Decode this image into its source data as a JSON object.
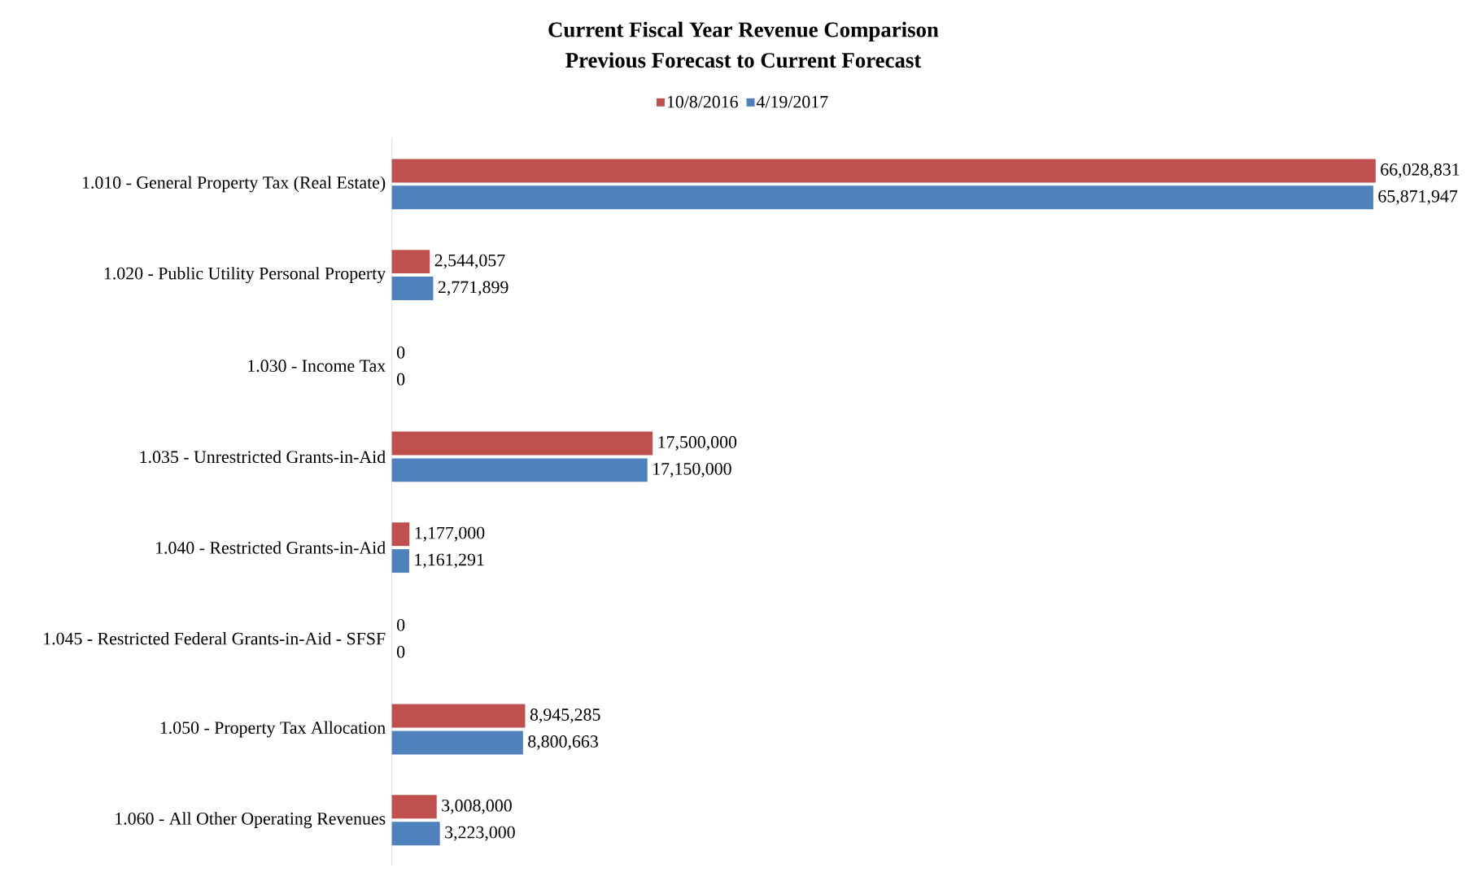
{
  "chart_data": {
    "type": "bar",
    "orientation": "horizontal",
    "title": "Current Fiscal Year Revenue Comparison",
    "subtitle": "Previous Forecast to Current Forecast",
    "categories": [
      "1.010 - General Property Tax (Real Estate)",
      "1.020 - Public Utility Personal Property",
      "1.030 - Income Tax",
      "1.035 - Unrestricted Grants-in-Aid",
      "1.040 - Restricted Grants-in-Aid",
      "1.045 - Restricted Federal Grants-in-Aid - SFSF",
      "1.050 - Property Tax Allocation",
      "1.060 - All Other Operating Revenues"
    ],
    "series": [
      {
        "name": "10/8/2016",
        "color": "#c0504d",
        "values": [
          66028831,
          2544057,
          0,
          17500000,
          1177000,
          0,
          8945285,
          3008000
        ],
        "value_labels": [
          "66,028,831",
          "2,544,057",
          "0",
          "17,500,000",
          "1,177,000",
          "0",
          "8,945,285",
          "3,008,000"
        ]
      },
      {
        "name": "4/19/2017",
        "color": "#4f81bd",
        "values": [
          65871947,
          2771899,
          0,
          17150000,
          1161291,
          0,
          8800663,
          3223000
        ],
        "value_labels": [
          "65,871,947",
          "2,771,899",
          "0",
          "17,150,000",
          "1,161,291",
          "0",
          "8,800,663",
          "3,223,000"
        ]
      }
    ],
    "legend": "top"
  }
}
